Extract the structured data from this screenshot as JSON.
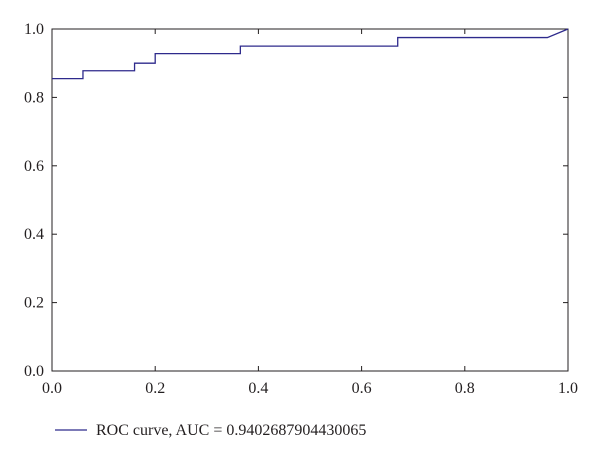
{
  "chart_data": {
    "type": "line",
    "title": "",
    "xlabel": "",
    "ylabel": "",
    "xlim": [
      0.0,
      1.0
    ],
    "ylim": [
      0.0,
      1.0
    ],
    "x_ticks": [
      "0.0",
      "0.2",
      "0.4",
      "0.6",
      "0.8",
      "1.0"
    ],
    "y_ticks": [
      "0.0",
      "0.2",
      "0.4",
      "0.6",
      "0.8",
      "1.0"
    ],
    "grid": false,
    "legend_position": "bottom-left",
    "series": [
      {
        "name": "ROC curve, AUC = 0.9402687904430065",
        "color": "#2e2a8c",
        "points": [
          [
            0.0,
            0.855
          ],
          [
            0.06,
            0.855
          ],
          [
            0.06,
            0.878
          ],
          [
            0.16,
            0.878
          ],
          [
            0.16,
            0.9
          ],
          [
            0.2,
            0.9
          ],
          [
            0.2,
            0.928
          ],
          [
            0.365,
            0.928
          ],
          [
            0.365,
            0.95
          ],
          [
            0.67,
            0.95
          ],
          [
            0.67,
            0.975
          ],
          [
            0.96,
            0.975
          ],
          [
            1.0,
            1.0
          ]
        ]
      }
    ]
  }
}
